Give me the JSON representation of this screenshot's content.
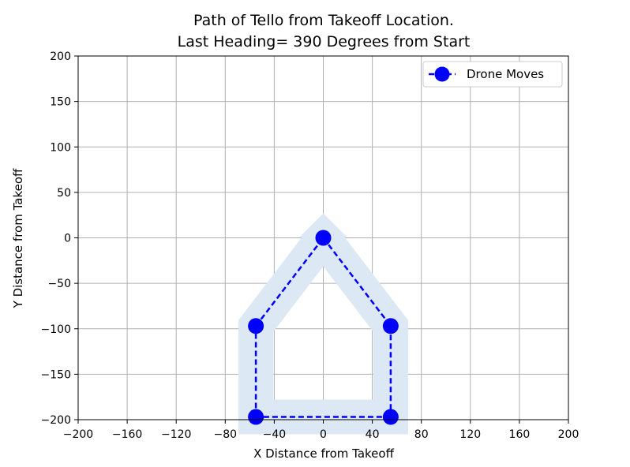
{
  "chart_data": {
    "type": "line",
    "title_line1": "Path of Tello from Takeoff Location.",
    "title_line2": "Last Heading= 390 Degrees from Start",
    "xlabel": "X Distance from Takeoff",
    "ylabel": "Y Distance from Takeoff",
    "xlim": [
      -200,
      200
    ],
    "ylim": [
      -200,
      200
    ],
    "xticks": [
      -200,
      -160,
      -120,
      -80,
      -40,
      0,
      40,
      80,
      120,
      160,
      200
    ],
    "yticks": [
      200,
      150,
      100,
      50,
      0,
      -50,
      -100,
      -150,
      -200
    ],
    "grid": true,
    "legend_position": "top-right",
    "series": [
      {
        "name": "Drone Moves",
        "color": "#0000ff",
        "style": "dashed-with-circle-markers",
        "points": [
          [
            0,
            0
          ],
          [
            55,
            -97
          ],
          [
            55,
            -197
          ],
          [
            -55,
            -197
          ],
          [
            -55,
            -97
          ],
          [
            0,
            0
          ]
        ]
      }
    ],
    "background_path": {
      "color": "#dce8f3",
      "points": [
        [
          0,
          0
        ],
        [
          55,
          -97
        ],
        [
          55,
          -197
        ],
        [
          -55,
          -197
        ],
        [
          -55,
          -97
        ],
        [
          0,
          0
        ]
      ]
    }
  }
}
